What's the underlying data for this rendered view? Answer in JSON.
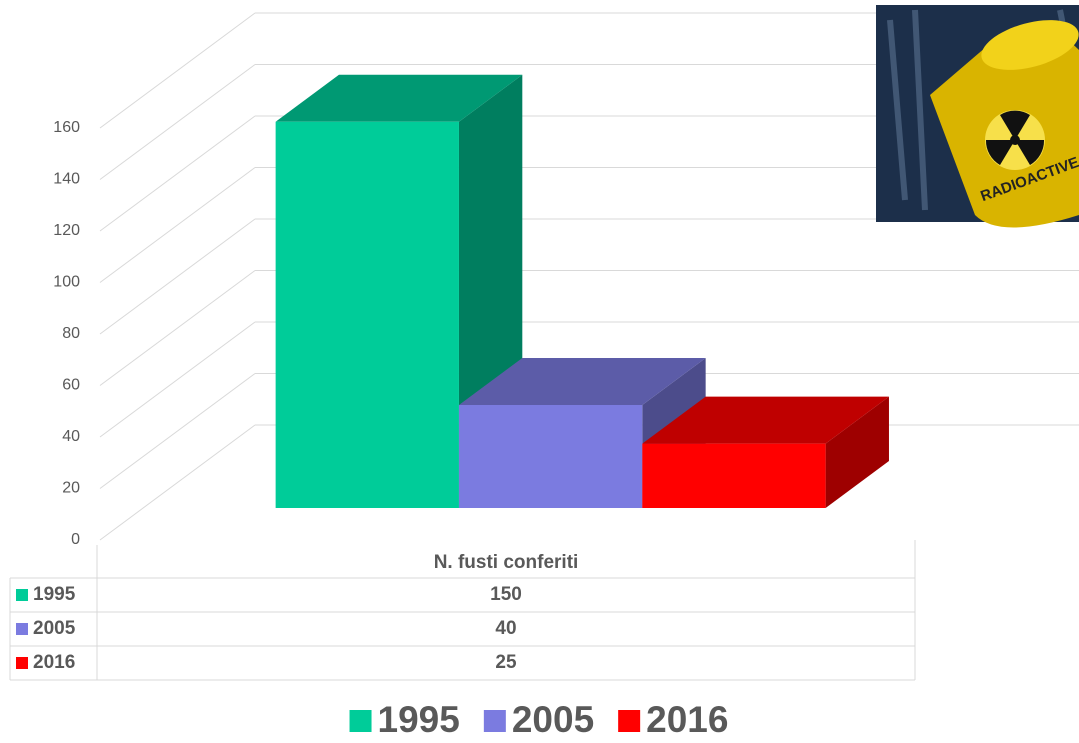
{
  "chart_data": {
    "type": "bar3d",
    "categories": [
      "N. fusti conferiti"
    ],
    "series": [
      {
        "name": "1995",
        "color": "#00cc99",
        "values": [
          150
        ]
      },
      {
        "name": "2005",
        "color": "#7b7be0",
        "values": [
          40
        ]
      },
      {
        "name": "2016",
        "color": "#ff0000",
        "values": [
          25
        ]
      }
    ],
    "ylim": [
      0,
      160
    ],
    "yticks": [
      0,
      20,
      40,
      60,
      80,
      100,
      120,
      140,
      160
    ],
    "grid": true,
    "legend": "bottom",
    "data_table": true
  },
  "image": {
    "label": "RADIOACTIVE"
  }
}
